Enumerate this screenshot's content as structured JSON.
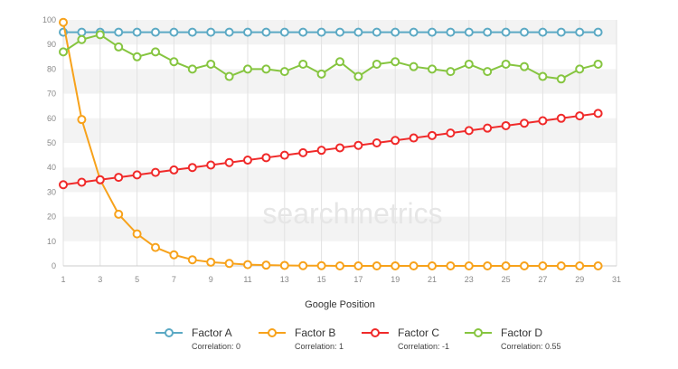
{
  "chart_data": {
    "type": "line",
    "title": "",
    "xlabel": "Google Position",
    "ylabel": "",
    "xlim": [
      1,
      31
    ],
    "ylim": [
      0,
      100
    ],
    "xticks": [
      1,
      3,
      5,
      7,
      9,
      11,
      13,
      15,
      17,
      19,
      21,
      23,
      25,
      27,
      29,
      31
    ],
    "yticks": [
      0,
      10,
      20,
      30,
      40,
      50,
      60,
      70,
      80,
      90,
      100
    ],
    "grid": true,
    "legend_position": "bottom",
    "x": [
      1,
      2,
      3,
      4,
      5,
      6,
      7,
      8,
      9,
      10,
      11,
      12,
      13,
      14,
      15,
      16,
      17,
      18,
      19,
      20,
      21,
      22,
      23,
      24,
      25,
      26,
      27,
      28,
      29,
      30
    ],
    "series": [
      {
        "name": "Factor A",
        "correlation": "Correlation: 0",
        "color": "#5ba9c4",
        "values": [
          95,
          95,
          95,
          95,
          95,
          95,
          95,
          95,
          95,
          95,
          95,
          95,
          95,
          95,
          95,
          95,
          95,
          95,
          95,
          95,
          95,
          95,
          95,
          95,
          95,
          95,
          95,
          95,
          95,
          95
        ]
      },
      {
        "name": "Factor B",
        "correlation": "Correlation: 1",
        "color": "#f7a21b",
        "values": [
          99,
          59.5,
          35,
          21,
          13,
          7.5,
          4.5,
          2.5,
          1.5,
          1,
          0.5,
          0.3,
          0.2,
          0.1,
          0.1,
          0,
          0,
          0,
          0,
          0,
          0,
          0,
          0,
          0,
          0,
          0,
          0,
          0,
          0,
          0
        ]
      },
      {
        "name": "Factor C",
        "correlation": "Correlation: -1",
        "color": "#f02a2a",
        "values": [
          33,
          34,
          35,
          36,
          37,
          38,
          39,
          40,
          41,
          42,
          43,
          44,
          45,
          46,
          47,
          48,
          49,
          50,
          51,
          52,
          53,
          54,
          55,
          56,
          57,
          58,
          59,
          60,
          61,
          62
        ]
      },
      {
        "name": "Factor D",
        "correlation": "Correlation: 0.55",
        "color": "#86c540",
        "values": [
          87,
          92,
          94,
          89,
          85,
          87,
          83,
          80,
          82,
          77,
          80,
          80,
          79,
          82,
          78,
          83,
          77,
          82,
          83,
          81,
          80,
          79,
          82,
          79,
          82,
          81,
          77,
          76,
          80,
          82
        ]
      }
    ]
  },
  "watermark": "searchmetrics"
}
